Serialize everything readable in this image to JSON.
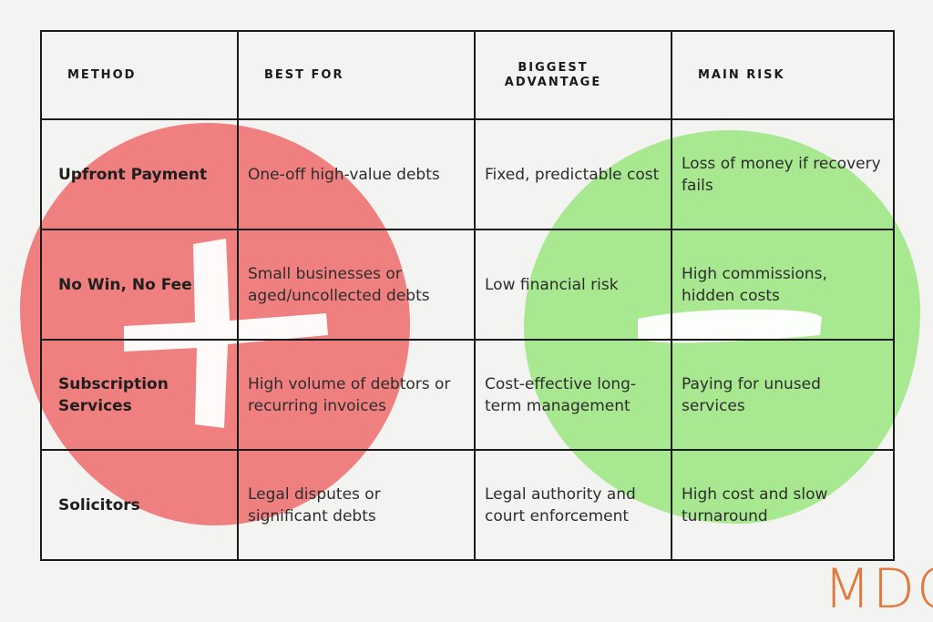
{
  "table": {
    "headers": [
      "METHOD",
      "BEST FOR",
      "BIGGEST ADVANTAGE",
      "MAIN RISK"
    ],
    "rows": [
      {
        "method": "Upfront Payment",
        "best_for": "One-off high-value debts",
        "advantage": "Fixed, predictable cost",
        "risk": "Loss of money if recovery fails"
      },
      {
        "method": "No Win, No Fee",
        "best_for": "Small businesses or aged/uncollected debts",
        "advantage": "Low financial risk",
        "risk": "High commissions, hidden costs"
      },
      {
        "method": "Subscription Services",
        "best_for": "High volume of debtors or recurring invoices",
        "advantage": "Cost-effective long-term management",
        "risk": "Paying for unused services"
      },
      {
        "method": "Solicitors",
        "best_for": "Legal disputes or significant debts",
        "advantage": "Legal authority and court enforcement",
        "risk": "High cost and slow turnaround"
      }
    ]
  },
  "decor": {
    "plus_mark_color": "#ffffff",
    "red_blob_color": "#f07f7f",
    "green_blob_color": "#a8e890",
    "plus_icon": "plus-icon",
    "minus_icon": "minus-icon"
  },
  "logo": {
    "text": "MDC",
    "color": "#e07a3e"
  }
}
